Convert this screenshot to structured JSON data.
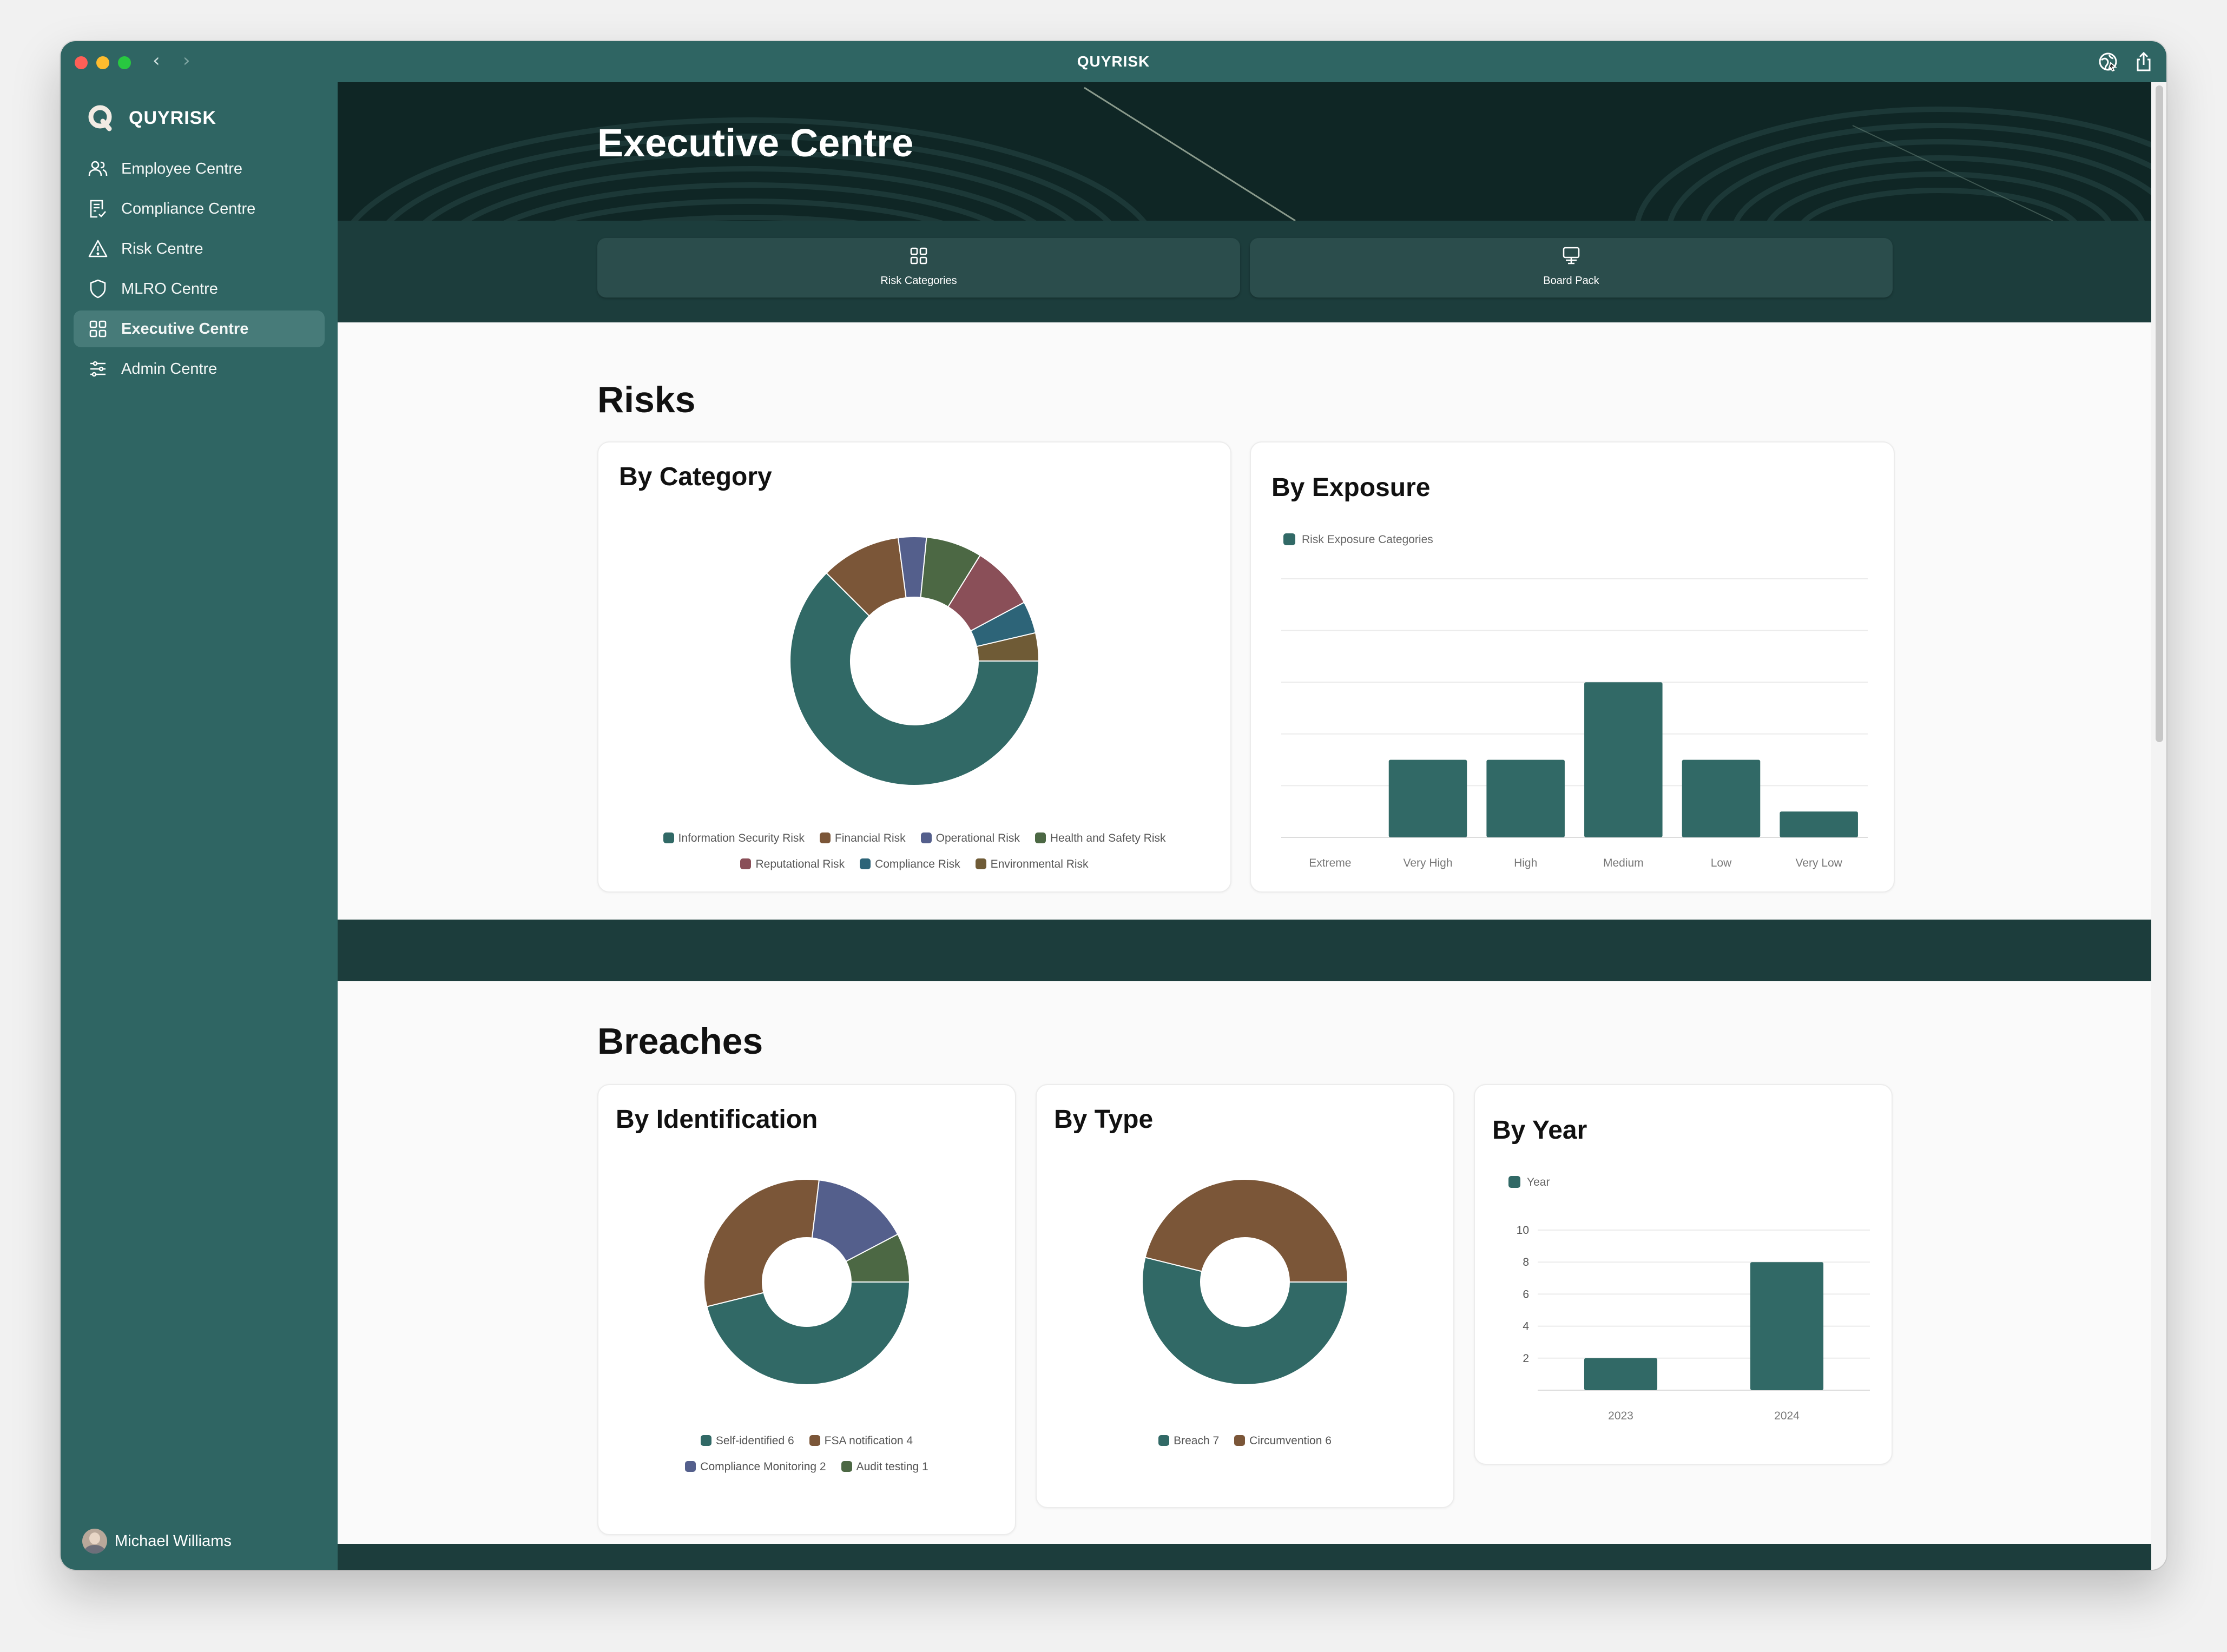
{
  "window": {
    "title": "QUYRISK"
  },
  "sidebar": {
    "brand": "QUYRISK",
    "items": [
      {
        "label": "Employee Centre",
        "icon": "users-icon"
      },
      {
        "label": "Compliance Centre",
        "icon": "document-check-icon"
      },
      {
        "label": "Risk Centre",
        "icon": "warning-triangle-icon"
      },
      {
        "label": "MLRO Centre",
        "icon": "shield-icon"
      },
      {
        "label": "Executive Centre",
        "icon": "grid-icon",
        "active": true
      },
      {
        "label": "Admin Centre",
        "icon": "sliders-icon"
      }
    ],
    "user": {
      "name": "Michael Williams"
    }
  },
  "header": {
    "title": "Executive Centre",
    "actions": [
      {
        "label": "Risk Categories",
        "icon": "grid-icon"
      },
      {
        "label": "Board Pack",
        "icon": "presentation-icon"
      }
    ]
  },
  "risks": {
    "title": "Risks",
    "by_category": {
      "title": "By Category"
    },
    "by_exposure": {
      "title": "By Exposure"
    }
  },
  "breaches": {
    "title": "Breaches",
    "by_identification": {
      "title": "By Identification"
    },
    "by_type": {
      "title": "By Type"
    },
    "by_year": {
      "title": "By Year"
    }
  },
  "colors": {
    "teal": "#316966",
    "brown": "#7b5638",
    "indigo": "#545f8c",
    "green": "#4c6844",
    "rose": "#8a4f58",
    "blue": "#2d6478",
    "olive": "#6f5b36"
  },
  "chart_data": [
    {
      "id": "risks-by-category",
      "type": "pie",
      "variant": "donut",
      "categories": [
        "Information Security Risk",
        "Financial Risk",
        "Operational Risk",
        "Health and Safety Risk",
        "Reputational Risk",
        "Compliance Risk",
        "Environmental Risk"
      ],
      "values": [
        60,
        10,
        3.5,
        7,
        8,
        4,
        3.5
      ],
      "colors": [
        "#316966",
        "#7b5638",
        "#545f8c",
        "#4c6844",
        "#8a4f58",
        "#2d6478",
        "#6f5b36"
      ],
      "legend_rows": [
        [
          0,
          1,
          2,
          3
        ],
        [
          4,
          5,
          6
        ]
      ]
    },
    {
      "id": "risks-by-exposure",
      "type": "bar",
      "categories": [
        "Extreme",
        "Very High",
        "High",
        "Medium",
        "Low",
        "Very Low"
      ],
      "series": [
        {
          "name": "Risk Exposure Categories",
          "values": [
            0,
            3,
            3,
            6,
            3,
            1
          ]
        }
      ],
      "ylim": [
        0,
        10
      ],
      "grid": true,
      "legend": "top-left"
    },
    {
      "id": "breaches-by-identification",
      "type": "pie",
      "variant": "donut",
      "categories": [
        "Self-identified",
        "FSA notification",
        "Compliance Monitoring",
        "Audit testing"
      ],
      "values": [
        6,
        4,
        2,
        1
      ],
      "labels": [
        "Self-identified 6",
        "FSA notification 4",
        "Compliance Monitoring 2",
        "Audit testing 1"
      ],
      "colors": [
        "#316966",
        "#7b5638",
        "#545f8c",
        "#4c6844"
      ],
      "legend_rows": [
        [
          0,
          1
        ],
        [
          2,
          3
        ]
      ]
    },
    {
      "id": "breaches-by-type",
      "type": "pie",
      "variant": "donut",
      "categories": [
        "Breach",
        "Circumvention"
      ],
      "values": [
        7,
        6
      ],
      "labels": [
        "Breach 7",
        "Circumvention 6"
      ],
      "colors": [
        "#316966",
        "#7b5638"
      ],
      "legend_rows": [
        [
          0,
          1
        ]
      ]
    },
    {
      "id": "breaches-by-year",
      "type": "bar",
      "categories": [
        "2023",
        "2024"
      ],
      "series": [
        {
          "name": "Year",
          "values": [
            2,
            8
          ]
        }
      ],
      "yticks": [
        2,
        4,
        6,
        8,
        10
      ],
      "ylim": [
        0,
        10
      ],
      "grid": true,
      "legend": "top-left"
    }
  ]
}
